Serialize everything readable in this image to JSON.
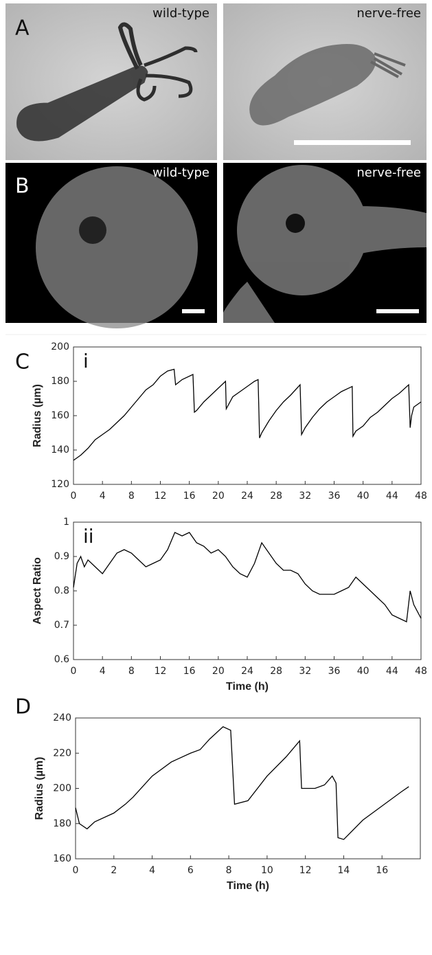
{
  "figure": {
    "panel_labels": [
      "A",
      "B",
      "C",
      "D"
    ],
    "photos": [
      {
        "caption": "wild-type"
      },
      {
        "caption": "nerve-free"
      },
      {
        "caption": "wild-type"
      },
      {
        "caption": "nerve-free"
      }
    ]
  },
  "chart_data": [
    {
      "type": "line",
      "annotation": "i",
      "ylabel": "Radius (µm)",
      "x": [
        0,
        1,
        2,
        3,
        4,
        5,
        6,
        7,
        8,
        9,
        10,
        11,
        12,
        13,
        13.9,
        14.1,
        15,
        16.5,
        16.7,
        17,
        18,
        19,
        20,
        21,
        21.1,
        22,
        23,
        24,
        25,
        25.5,
        25.7,
        26,
        27,
        28,
        29,
        30,
        31.3,
        31.5,
        32,
        33,
        34,
        35,
        36,
        37,
        38.5,
        38.6,
        39,
        40,
        41,
        42,
        43,
        44,
        45,
        46.3,
        46.5,
        46.7,
        47,
        48
      ],
      "series": [
        {
          "color": "#000000",
          "values": [
            134,
            137,
            141,
            146,
            149,
            152,
            156,
            160,
            165,
            170,
            175,
            178,
            183,
            186,
            187,
            178,
            181,
            184,
            162,
            163,
            168,
            172,
            176,
            180,
            164,
            171,
            174,
            177,
            180,
            181,
            147,
            150,
            157,
            163,
            168,
            172,
            178,
            149,
            153,
            159,
            164,
            168,
            171,
            174,
            177,
            148,
            151,
            154,
            159,
            162,
            166,
            170,
            173,
            178,
            153,
            160,
            165,
            168
          ]
        }
      ],
      "xlim": [
        0,
        48
      ],
      "ylim": [
        120,
        200
      ],
      "xticks": [
        0,
        4,
        8,
        12,
        16,
        20,
        24,
        28,
        32,
        36,
        40,
        44,
        48
      ],
      "yticks": [
        120,
        140,
        160,
        180,
        200
      ]
    },
    {
      "type": "line",
      "annotation": "ii",
      "ylabel": "Aspect Ratio",
      "xlabel": "Time (h)",
      "x": [
        0,
        0.5,
        1,
        1.5,
        2,
        3,
        4,
        5,
        6,
        7,
        8,
        9,
        10,
        11,
        12,
        13,
        14,
        15,
        16,
        17,
        18,
        19,
        20,
        21,
        22,
        23,
        24,
        25,
        26,
        27,
        28,
        29,
        30,
        31,
        32,
        33,
        34,
        35,
        36,
        37,
        38,
        39,
        40,
        41,
        42,
        43,
        44,
        45,
        46,
        46.5,
        47,
        48
      ],
      "series": [
        {
          "color": "#000000",
          "values": [
            0.81,
            0.88,
            0.9,
            0.87,
            0.89,
            0.87,
            0.85,
            0.88,
            0.91,
            0.92,
            0.91,
            0.89,
            0.87,
            0.88,
            0.89,
            0.92,
            0.97,
            0.96,
            0.97,
            0.94,
            0.93,
            0.91,
            0.92,
            0.9,
            0.87,
            0.85,
            0.84,
            0.88,
            0.94,
            0.91,
            0.88,
            0.86,
            0.86,
            0.85,
            0.82,
            0.8,
            0.79,
            0.79,
            0.79,
            0.8,
            0.81,
            0.84,
            0.82,
            0.8,
            0.78,
            0.76,
            0.73,
            0.72,
            0.71,
            0.8,
            0.76,
            0.72
          ]
        }
      ],
      "xlim": [
        0,
        48
      ],
      "ylim": [
        0.6,
        1
      ],
      "xticks": [
        0,
        4,
        8,
        12,
        16,
        20,
        24,
        28,
        32,
        36,
        40,
        44,
        48
      ],
      "yticks": [
        0.6,
        0.7,
        0.8,
        0.9,
        1
      ]
    },
    {
      "type": "line",
      "ylabel": "Radius (µm)",
      "xlabel": "Time (h)",
      "x": [
        0,
        0.2,
        0.6,
        1,
        2,
        2.6,
        3,
        4,
        5,
        6,
        6.5,
        7,
        7.7,
        8.1,
        8.3,
        9,
        10,
        11,
        11.7,
        11.8,
        12.5,
        13,
        13.4,
        13.6,
        13.7,
        14,
        15,
        16,
        17,
        17.4
      ],
      "series": [
        {
          "color": "#000000",
          "values": [
            189,
            180,
            177,
            181,
            186,
            191,
            195,
            207,
            215,
            220,
            222,
            228,
            235,
            233,
            191,
            193,
            207,
            218,
            227,
            200,
            200,
            202,
            207,
            203,
            172,
            171,
            182,
            190,
            198,
            201
          ]
        }
      ],
      "xlim": [
        0,
        18
      ],
      "ylim": [
        160,
        240
      ],
      "xticks": [
        0,
        2,
        4,
        6,
        8,
        10,
        12,
        14,
        16
      ],
      "yticks": [
        160,
        180,
        200,
        220,
        240
      ]
    }
  ]
}
